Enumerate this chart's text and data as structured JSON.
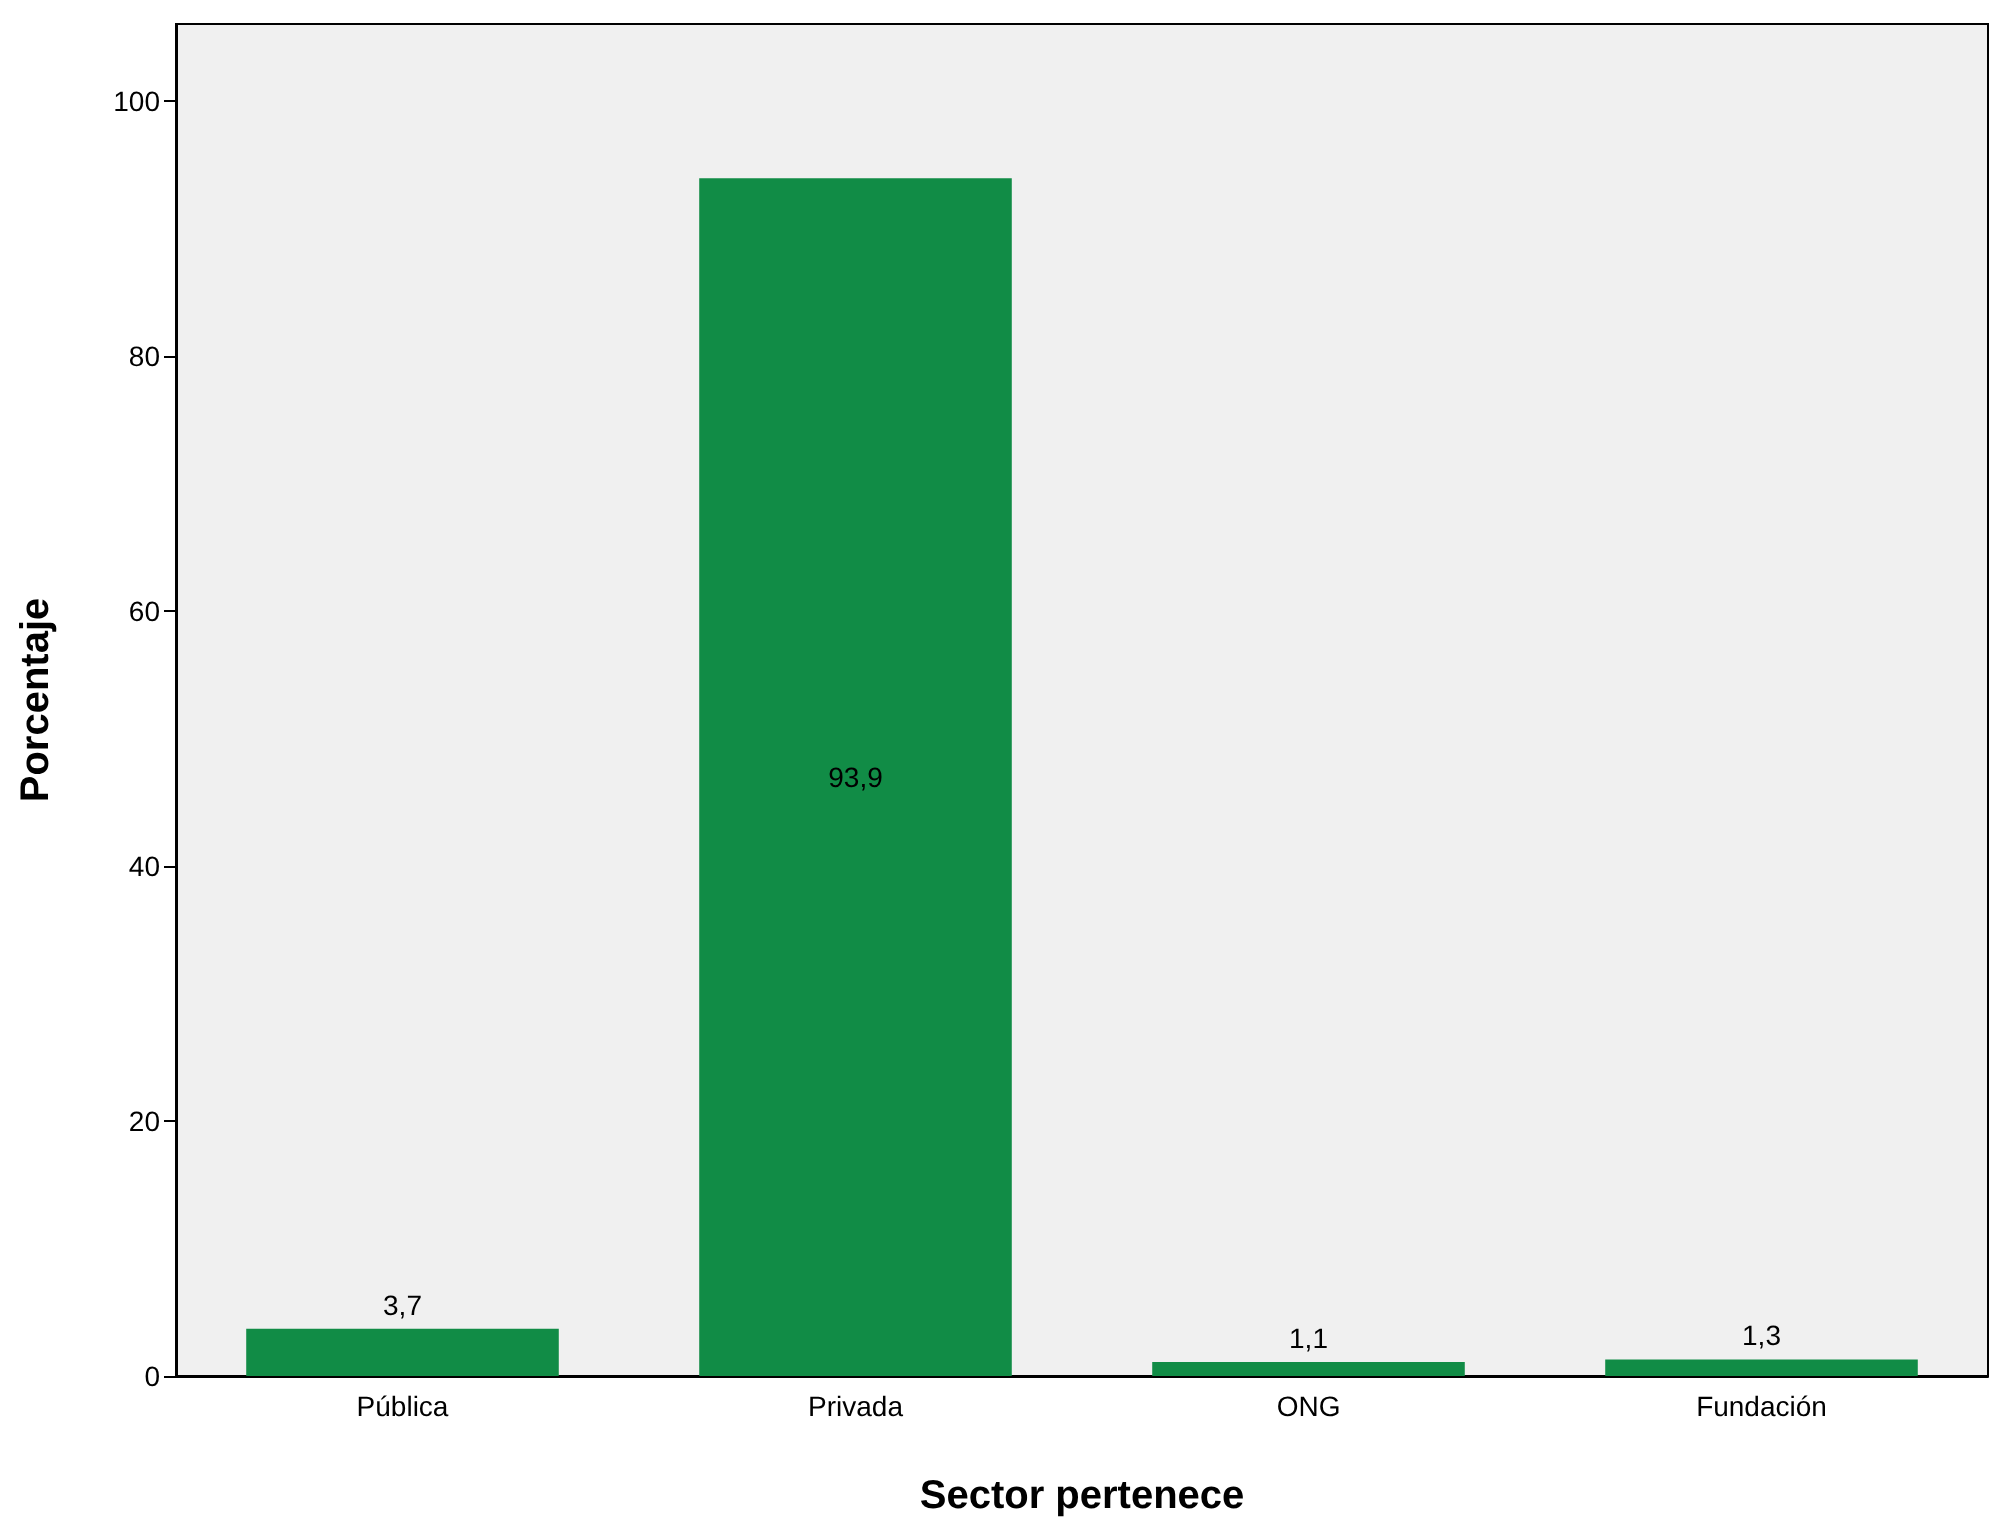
{
  "chart_data": {
    "type": "bar",
    "xlabel": "Sector pertenece",
    "ylabel": "Porcentaje",
    "categories": [
      "Pública",
      "Privada",
      "ONG",
      "Fundación"
    ],
    "values": [
      3.7,
      93.9,
      1.1,
      1.3
    ],
    "value_labels": [
      "3,7",
      "93,9",
      "1,1",
      "1,3"
    ],
    "color": "#118c46",
    "ylim": [
      0,
      106
    ],
    "yticks": [
      0,
      20,
      40,
      60,
      80,
      100
    ],
    "grid": false
  }
}
